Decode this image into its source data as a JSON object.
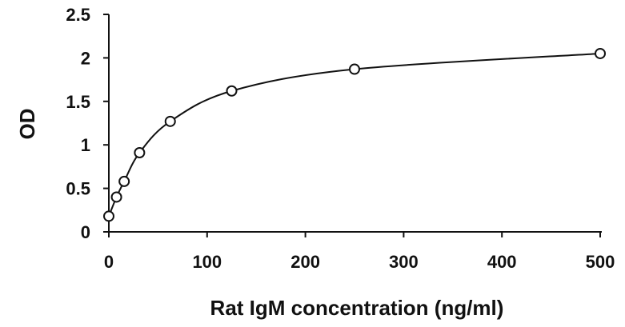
{
  "chart_data": {
    "type": "scatter",
    "title": "",
    "xlabel": "Rat IgM concentration (ng/ml)",
    "ylabel": "OD",
    "xlim": [
      0,
      500
    ],
    "ylim": [
      0,
      2.5
    ],
    "x_ticks": [
      0,
      100,
      200,
      300,
      400,
      500
    ],
    "y_ticks": [
      0,
      0.5,
      1,
      1.5,
      2,
      2.5
    ],
    "x_tick_labels": [
      "0",
      "100",
      "200",
      "300",
      "400",
      "500"
    ],
    "y_tick_labels": [
      "0",
      "0.5",
      "1",
      "1.5",
      "2",
      "2.5"
    ],
    "grid": false,
    "legend": "none",
    "series": [
      {
        "marker": "open-circle",
        "fit_line": "smooth-curve",
        "points": [
          {
            "x": 0,
            "y": 0.18
          },
          {
            "x": 7.8,
            "y": 0.4
          },
          {
            "x": 15.6,
            "y": 0.58
          },
          {
            "x": 31.25,
            "y": 0.91
          },
          {
            "x": 62.5,
            "y": 1.27
          },
          {
            "x": 125,
            "y": 1.62
          },
          {
            "x": 250,
            "y": 1.87
          },
          {
            "x": 500,
            "y": 2.05
          }
        ]
      }
    ],
    "colors": {
      "marker_stroke": "#111111",
      "line": "#111111",
      "axis": "#111111"
    }
  }
}
